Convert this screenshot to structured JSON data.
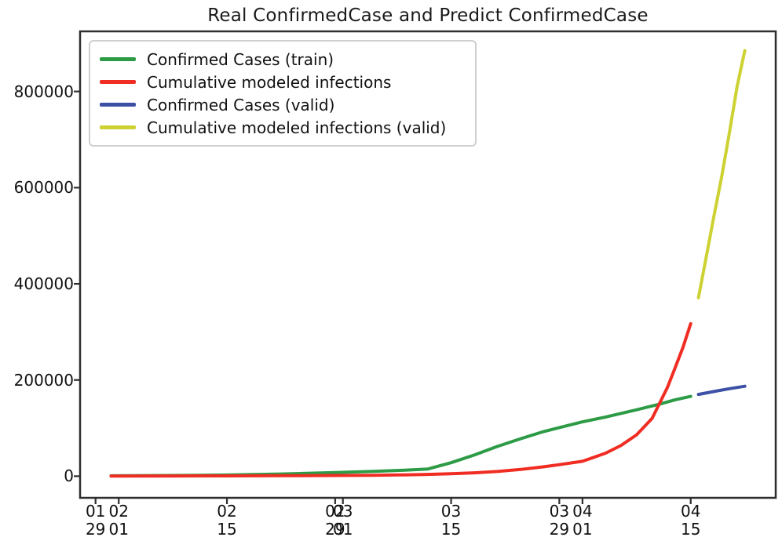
{
  "chart_data": {
    "type": "line",
    "title": "Real ConfirmedCase and Predict ConfirmedCase",
    "axis_color": "#2e2e2e",
    "text_color": "#111111",
    "background": "#ffffff",
    "grid": false,
    "legend": {
      "position": "upper-left",
      "border_color": "#cfcfcf"
    },
    "x_axis": {
      "kind": "date",
      "day_zero_date": "01-29",
      "domain_day_index": [
        -2,
        88
      ],
      "tick_labels": [
        {
          "month": "01",
          "day": "29",
          "day_index": 0
        },
        {
          "month": "02",
          "day": "01",
          "day_index": 3
        },
        {
          "month": "02",
          "day": "15",
          "day_index": 17
        },
        {
          "month": "02",
          "day": "29",
          "day_index": 31
        },
        {
          "month": "03",
          "day": "01",
          "day_index": 32
        },
        {
          "month": "03",
          "day": "15",
          "day_index": 46
        },
        {
          "month": "03",
          "day": "29",
          "day_index": 60
        },
        {
          "month": "04",
          "day": "01",
          "day_index": 63
        },
        {
          "month": "04",
          "day": "15",
          "day_index": 77
        }
      ]
    },
    "y_axis": {
      "ticks": [
        0,
        200000,
        400000,
        600000,
        800000
      ],
      "tick_label_strings": [
        "0",
        "200000",
        "400000",
        "600000",
        "800000"
      ],
      "domain": [
        -45000,
        925000
      ]
    },
    "series": [
      {
        "id": "confirmed-train",
        "name": "Confirmed Cases (train)",
        "color": "#2d9b46",
        "points": [
          [
            2,
            "01-31",
            800
          ],
          [
            10,
            "02-08",
            1500
          ],
          [
            17,
            "02-15",
            2500
          ],
          [
            24,
            "02-22",
            4500
          ],
          [
            31,
            "02-29",
            7500
          ],
          [
            36,
            "03-05",
            10000
          ],
          [
            40,
            "03-09",
            12500
          ],
          [
            43,
            "03-12",
            15000
          ],
          [
            46,
            "03-15",
            28000
          ],
          [
            49,
            "03-18",
            44000
          ],
          [
            52,
            "03-21",
            62000
          ],
          [
            55,
            "03-24",
            78000
          ],
          [
            58,
            "03-27",
            93000
          ],
          [
            60,
            "03-29",
            101000
          ],
          [
            63,
            "04-01",
            113000
          ],
          [
            66,
            "04-04",
            123000
          ],
          [
            70,
            "04-08",
            138000
          ],
          [
            73,
            "04-11",
            150000
          ],
          [
            75,
            "04-13",
            159000
          ],
          [
            77,
            "04-15",
            166000
          ]
        ]
      },
      {
        "id": "model-cumulative",
        "name": "Cumulative modeled infections",
        "color": "#f02d23",
        "points": [
          [
            2,
            "01-31",
            300
          ],
          [
            10,
            "02-08",
            450
          ],
          [
            17,
            "02-15",
            650
          ],
          [
            24,
            "02-22",
            950
          ],
          [
            31,
            "02-29",
            1400
          ],
          [
            36,
            "03-05",
            2000
          ],
          [
            40,
            "03-09",
            2800
          ],
          [
            43,
            "03-12",
            3700
          ],
          [
            46,
            "03-15",
            5000
          ],
          [
            49,
            "03-18",
            7000
          ],
          [
            52,
            "03-21",
            9800
          ],
          [
            55,
            "03-24",
            14000
          ],
          [
            58,
            "03-27",
            19500
          ],
          [
            60,
            "03-29",
            24000
          ],
          [
            63,
            "04-01",
            31000
          ],
          [
            66,
            "04-04",
            48000
          ],
          [
            68,
            "04-06",
            64000
          ],
          [
            70,
            "04-08",
            86000
          ],
          [
            72,
            "04-10",
            120000
          ],
          [
            74,
            "04-12",
            185000
          ],
          [
            75,
            "04-13",
            226000
          ],
          [
            76,
            "04-14",
            268000
          ],
          [
            77,
            "04-15",
            317000
          ]
        ]
      },
      {
        "id": "confirmed-valid",
        "name": "Confirmed Cases (valid)",
        "color": "#3c50a5",
        "points": [
          [
            78,
            "04-16",
            170000
          ],
          [
            80,
            "04-18",
            176000
          ],
          [
            82,
            "04-20",
            182000
          ],
          [
            84,
            "04-22",
            187000
          ]
        ]
      },
      {
        "id": "model-cumulative-valid",
        "name": "Cumulative modeled infections (valid)",
        "color": "#cdd232",
        "points": [
          [
            78,
            "04-16",
            371000
          ],
          [
            79,
            "04-17",
            455000
          ],
          [
            80,
            "04-18",
            540000
          ],
          [
            81,
            "04-19",
            622000
          ],
          [
            82,
            "04-20",
            713000
          ],
          [
            83,
            "04-21",
            810000
          ],
          [
            84,
            "04-22",
            885000
          ]
        ]
      }
    ]
  }
}
